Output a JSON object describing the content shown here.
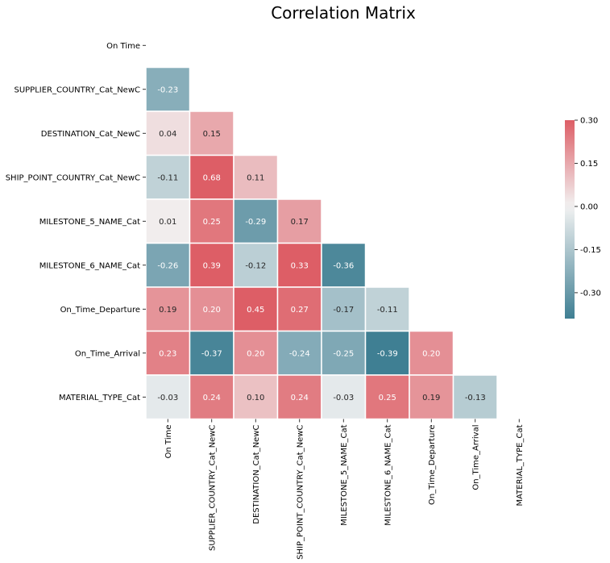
{
  "chart_data": {
    "type": "heatmap",
    "title": "Correlation Matrix",
    "xlabel": "",
    "ylabel": "",
    "mask": "upper-triangle-including-diagonal",
    "row_labels": [
      "On Time",
      "SUPPLIER_COUNTRY_Cat_NewC",
      "DESTINATION_Cat_NewC",
      "SHIP_POINT_COUNTRY_Cat_NewC",
      "MILESTONE_5_NAME_Cat",
      "MILESTONE_6_NAME_Cat",
      "On_Time_Departure",
      "On_Time_Arrival",
      "MATERIAL_TYPE_Cat"
    ],
    "col_labels": [
      "On Time",
      "SUPPLIER_COUNTRY_Cat_NewC",
      "DESTINATION_Cat_NewC",
      "SHIP_POINT_COUNTRY_Cat_NewC",
      "MILESTONE_5_NAME_Cat",
      "MILESTONE_6_NAME_Cat",
      "On_Time_Departure",
      "On_Time_Arrival",
      "MATERIAL_TYPE_Cat"
    ],
    "values": [
      [],
      [
        -0.23
      ],
      [
        0.04,
        0.15
      ],
      [
        -0.11,
        0.68,
        0.11
      ],
      [
        0.01,
        0.25,
        -0.29,
        0.17
      ],
      [
        -0.26,
        0.39,
        -0.12,
        0.33,
        -0.36
      ],
      [
        0.19,
        0.2,
        0.45,
        0.27,
        -0.17,
        -0.11
      ],
      [
        0.23,
        -0.37,
        0.2,
        -0.24,
        -0.25,
        -0.39,
        0.2
      ],
      [
        -0.03,
        0.24,
        0.1,
        0.24,
        -0.03,
        0.25,
        0.19,
        -0.13
      ]
    ],
    "value_labels": [
      [],
      [
        "-0.23"
      ],
      [
        "0.04",
        "0.15"
      ],
      [
        "-0.11",
        "0.68",
        "0.11"
      ],
      [
        "0.01",
        "0.25",
        "-0.29",
        "0.17"
      ],
      [
        "-0.26",
        "0.39",
        "-0.12",
        "0.33",
        "-0.36"
      ],
      [
        "0.19",
        "0.20",
        "0.45",
        "0.27",
        "-0.17",
        "-0.11"
      ],
      [
        "0.23",
        "-0.37",
        "0.20",
        "-0.24",
        "-0.25",
        "-0.39",
        "0.20"
      ],
      [
        "-0.03",
        "0.24",
        "0.10",
        "0.24",
        "-0.03",
        "0.25",
        "0.19",
        "-0.13"
      ]
    ],
    "color_scale": {
      "type": "diverging",
      "vmin": -0.39,
      "vmax": 0.3,
      "center": 0.0,
      "low_color": "#3f7f93",
      "mid_color": "#f2f2f2",
      "high_color": "#dd5e66",
      "ticks": [
        "-0.30",
        "-0.15",
        "0.00",
        "0.15",
        "0.30"
      ]
    },
    "colorbar_position": "right",
    "grid": false
  }
}
